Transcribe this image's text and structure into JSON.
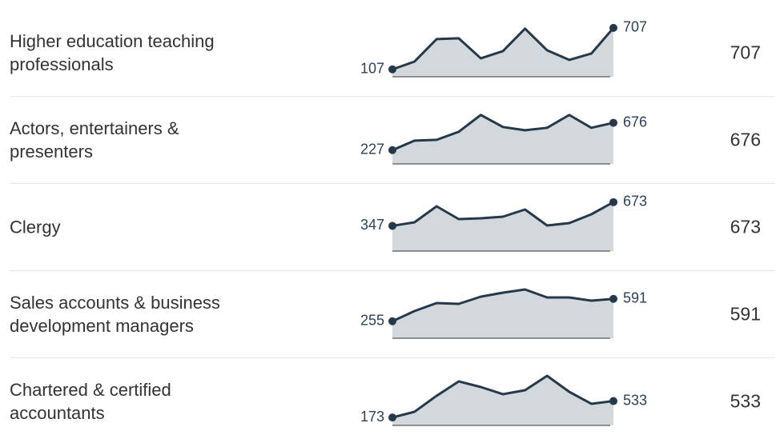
{
  "rows": [
    {
      "label": "Higher education teaching professionals",
      "sparkline": {
        "type": "area",
        "values": [
          107,
          220,
          545,
          557,
          267,
          371,
          696,
          383,
          244,
          336,
          707
        ],
        "ylim": [
          0,
          810
        ]
      }
    },
    {
      "label": "Actors, entertainers & presenters",
      "sparkline": {
        "type": "area",
        "values": [
          227,
          383,
          396,
          528,
          805,
          607,
          554,
          594,
          805,
          594,
          676
        ],
        "ylim": [
          0,
          920
        ]
      }
    },
    {
      "label": "Clergy",
      "sparkline": {
        "type": "area",
        "values": [
          347,
          396,
          616,
          440,
          451,
          473,
          572,
          352,
          385,
          506,
          673
        ],
        "ylim": [
          0,
          770
        ]
      }
    },
    {
      "label": "Sales accounts & business development managers",
      "sparkline": {
        "type": "area",
        "values": [
          255,
          408,
          528,
          516,
          624,
          684,
          732,
          612,
          612,
          564,
          591
        ],
        "ylim": [
          0,
          840
        ]
      }
    },
    {
      "label": "Chartered & certified accountants",
      "sparkline": {
        "type": "area",
        "values": [
          173,
          298,
          648,
          963,
          840,
          683,
          770,
          1085,
          735,
          473,
          533
        ],
        "ylim": [
          0,
          1225
        ]
      }
    }
  ]
}
